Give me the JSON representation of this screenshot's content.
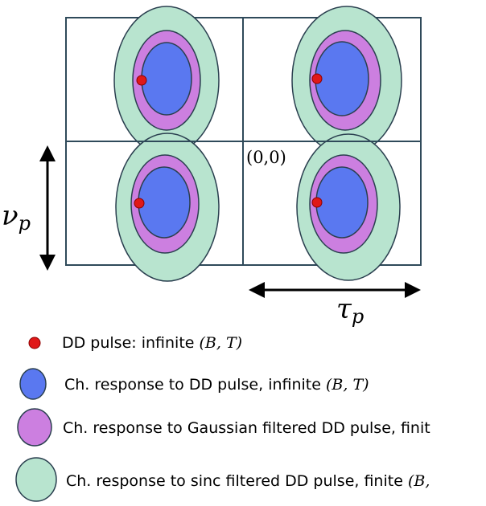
{
  "diagram": {
    "origin_label": "(0,0)",
    "vertical_axis_label": "ν",
    "vertical_axis_subscript": "p",
    "horizontal_axis_label": "τ",
    "horizontal_axis_subscript": "p"
  },
  "legend": {
    "items": [
      {
        "text": "DD pulse: infinite ",
        "math": "(B, T)"
      },
      {
        "text": "Ch. response to DD pulse, infinite ",
        "math": "(B, T)"
      },
      {
        "text": "Ch. response to Gaussian filtered DD pulse, finit",
        "math": ""
      },
      {
        "text": "Ch. response to sinc filtered DD pulse, finite ",
        "math": "(B,"
      }
    ]
  },
  "colors": {
    "grid": "#2f4a5a",
    "outer_fill": "#b8e4cf",
    "middle_fill": "#cc7fe0",
    "inner_fill": "#5a78f0",
    "ring_stroke": "#2a3f4f",
    "pulse_dot": "#e01818",
    "pulse_dot_stroke": "#8a0000",
    "arrow": "#000000",
    "text": "#000000"
  }
}
